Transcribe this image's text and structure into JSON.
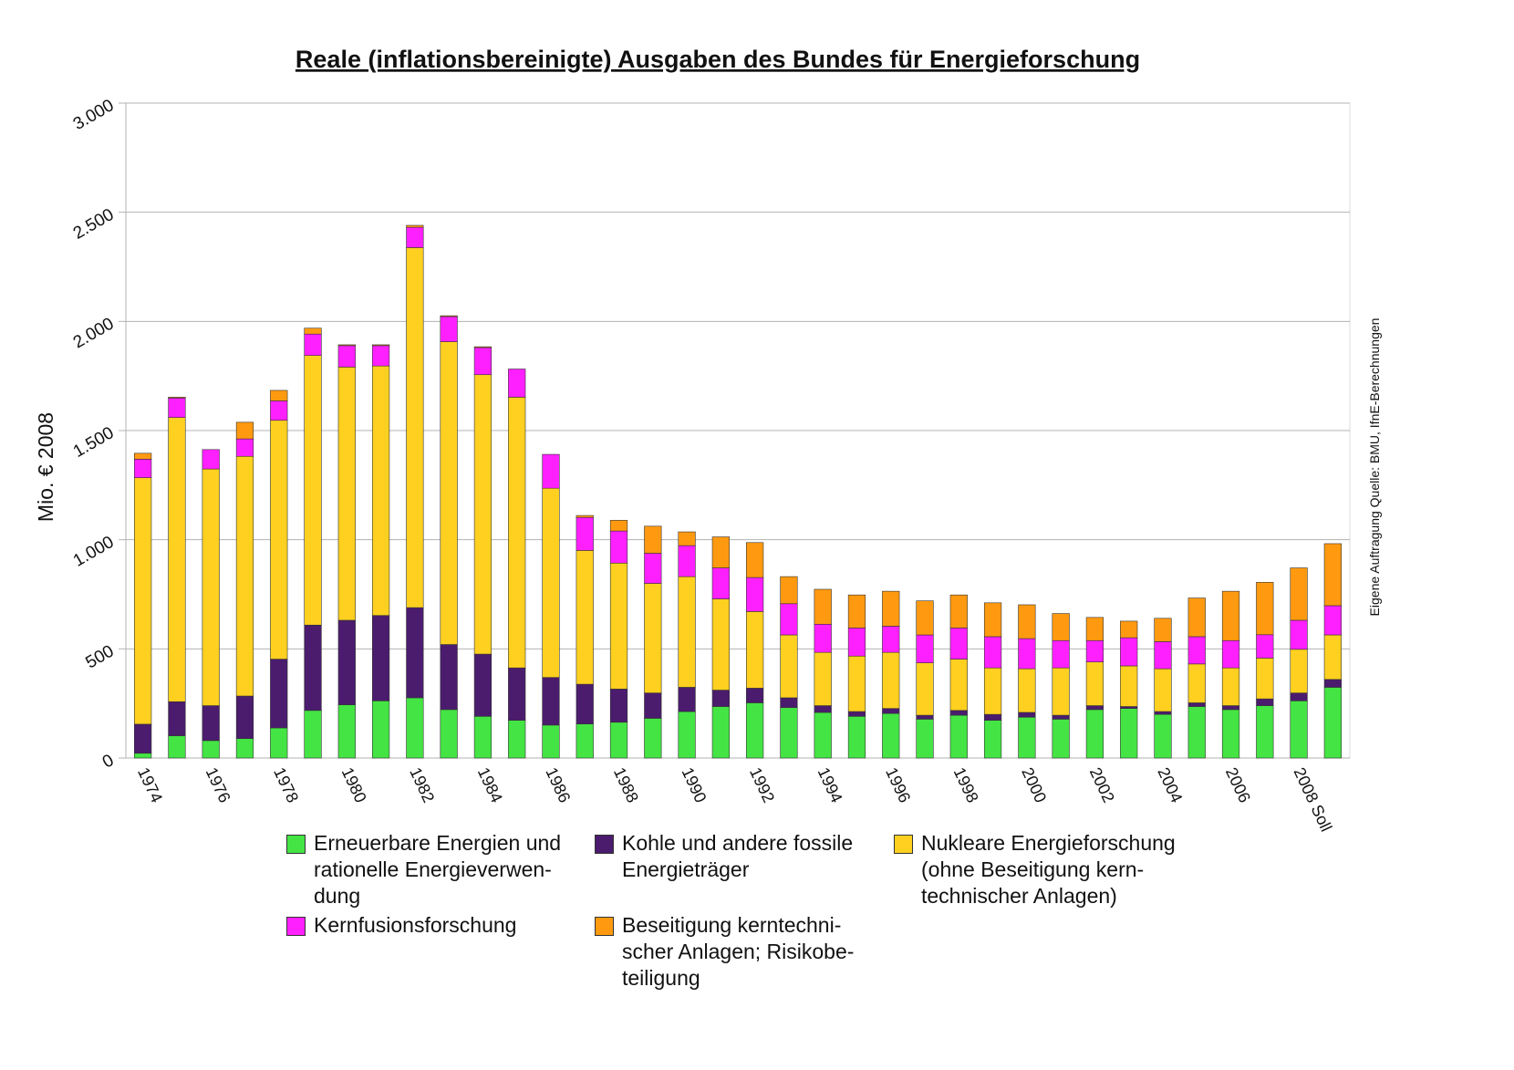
{
  "chart_data": {
    "type": "stacked_bar",
    "title": "Reale (inflationsbereinigte) Ausgaben des Bundes für Energieforschung",
    "y_label": "Mio. € 2008",
    "source": "Eigene Auftragung Quelle: BMU,  IfnE-Berechnungen",
    "categories": [
      "1974",
      null,
      "1976",
      null,
      "1978",
      null,
      "1980",
      null,
      "1982",
      null,
      "1984",
      null,
      "1986",
      null,
      "1988",
      null,
      "1990",
      null,
      "1992",
      null,
      "1994",
      null,
      "1996",
      null,
      "1998",
      null,
      "2000",
      null,
      "2002",
      null,
      "2004",
      null,
      "2006",
      null,
      "2008 Soll",
      null
    ],
    "series": [
      {
        "name": "Erneuerbare Energien und\nrationelle Energieverwen-\ndung",
        "color": "#44e444",
        "values": [
          22,
          102,
          80,
          89,
          138,
          218,
          244,
          262,
          276,
          222,
          191,
          173,
          151,
          156,
          164,
          182,
          213,
          236,
          253,
          231,
          209,
          191,
          204,
          178,
          196,
          173,
          187,
          178,
          222,
          227,
          200,
          236,
          222,
          240,
          262,
          324
        ]
      },
      {
        "name": "Kohle und andere fossile\nEnergieträger",
        "color": "#4b1c6e",
        "values": [
          133,
          156,
          160,
          195,
          315,
          391,
          387,
          391,
          413,
          298,
          285,
          240,
          218,
          182,
          152,
          116,
          111,
          75,
          67,
          45,
          31,
          22,
          23,
          18,
          22,
          27,
          22,
          18,
          18,
          9,
          13,
          17,
          18,
          31,
          36,
          36
        ]
      },
      {
        "name": "Nukleare Energieforschung\n(ohne Beseitigung kern-\ntechnischer Anlagen)",
        "color": "#ffd020",
        "values": [
          1129,
          1302,
          1084,
          1098,
          1094,
          1235,
          1160,
          1143,
          1649,
          1387,
          1280,
          1240,
          867,
          613,
          577,
          502,
          507,
          418,
          351,
          288,
          244,
          254,
          257,
          240,
          235,
          213,
          200,
          217,
          200,
          186,
          196,
          178,
          173,
          187,
          200,
          204
        ]
      },
      {
        "name": "Kernfusionsforschung",
        "color": "#ff20ff",
        "values": [
          85,
          89,
          89,
          80,
          89,
          98,
          98,
          93,
          93,
          115,
          124,
          129,
          155,
          151,
          147,
          138,
          142,
          142,
          156,
          143,
          129,
          129,
          120,
          128,
          143,
          143,
          138,
          125,
          98,
          129,
          124,
          125,
          125,
          107,
          133,
          134
        ]
      },
      {
        "name": "Beseitigung kerntechni-\nscher Anlagen; Risikobe-\nteiligung",
        "color": "#ff9a10",
        "values": [
          27,
          4,
          0,
          76,
          48,
          27,
          4,
          4,
          9,
          4,
          4,
          0,
          0,
          9,
          49,
          124,
          63,
          142,
          160,
          124,
          160,
          151,
          160,
          156,
          151,
          155,
          155,
          124,
          106,
          76,
          107,
          177,
          226,
          240,
          240,
          284
        ]
      }
    ],
    "ylim": [
      0,
      3000
    ],
    "yticks": [
      0,
      500,
      {
        "value": 1000,
        "label": "1.000"
      },
      {
        "value": 1500,
        "label": "1.500"
      },
      {
        "value": 2000,
        "label": "2.000"
      },
      {
        "value": 2500,
        "label": "2.500"
      },
      {
        "value": 3000,
        "label": "3.000"
      }
    ],
    "grid": true
  }
}
